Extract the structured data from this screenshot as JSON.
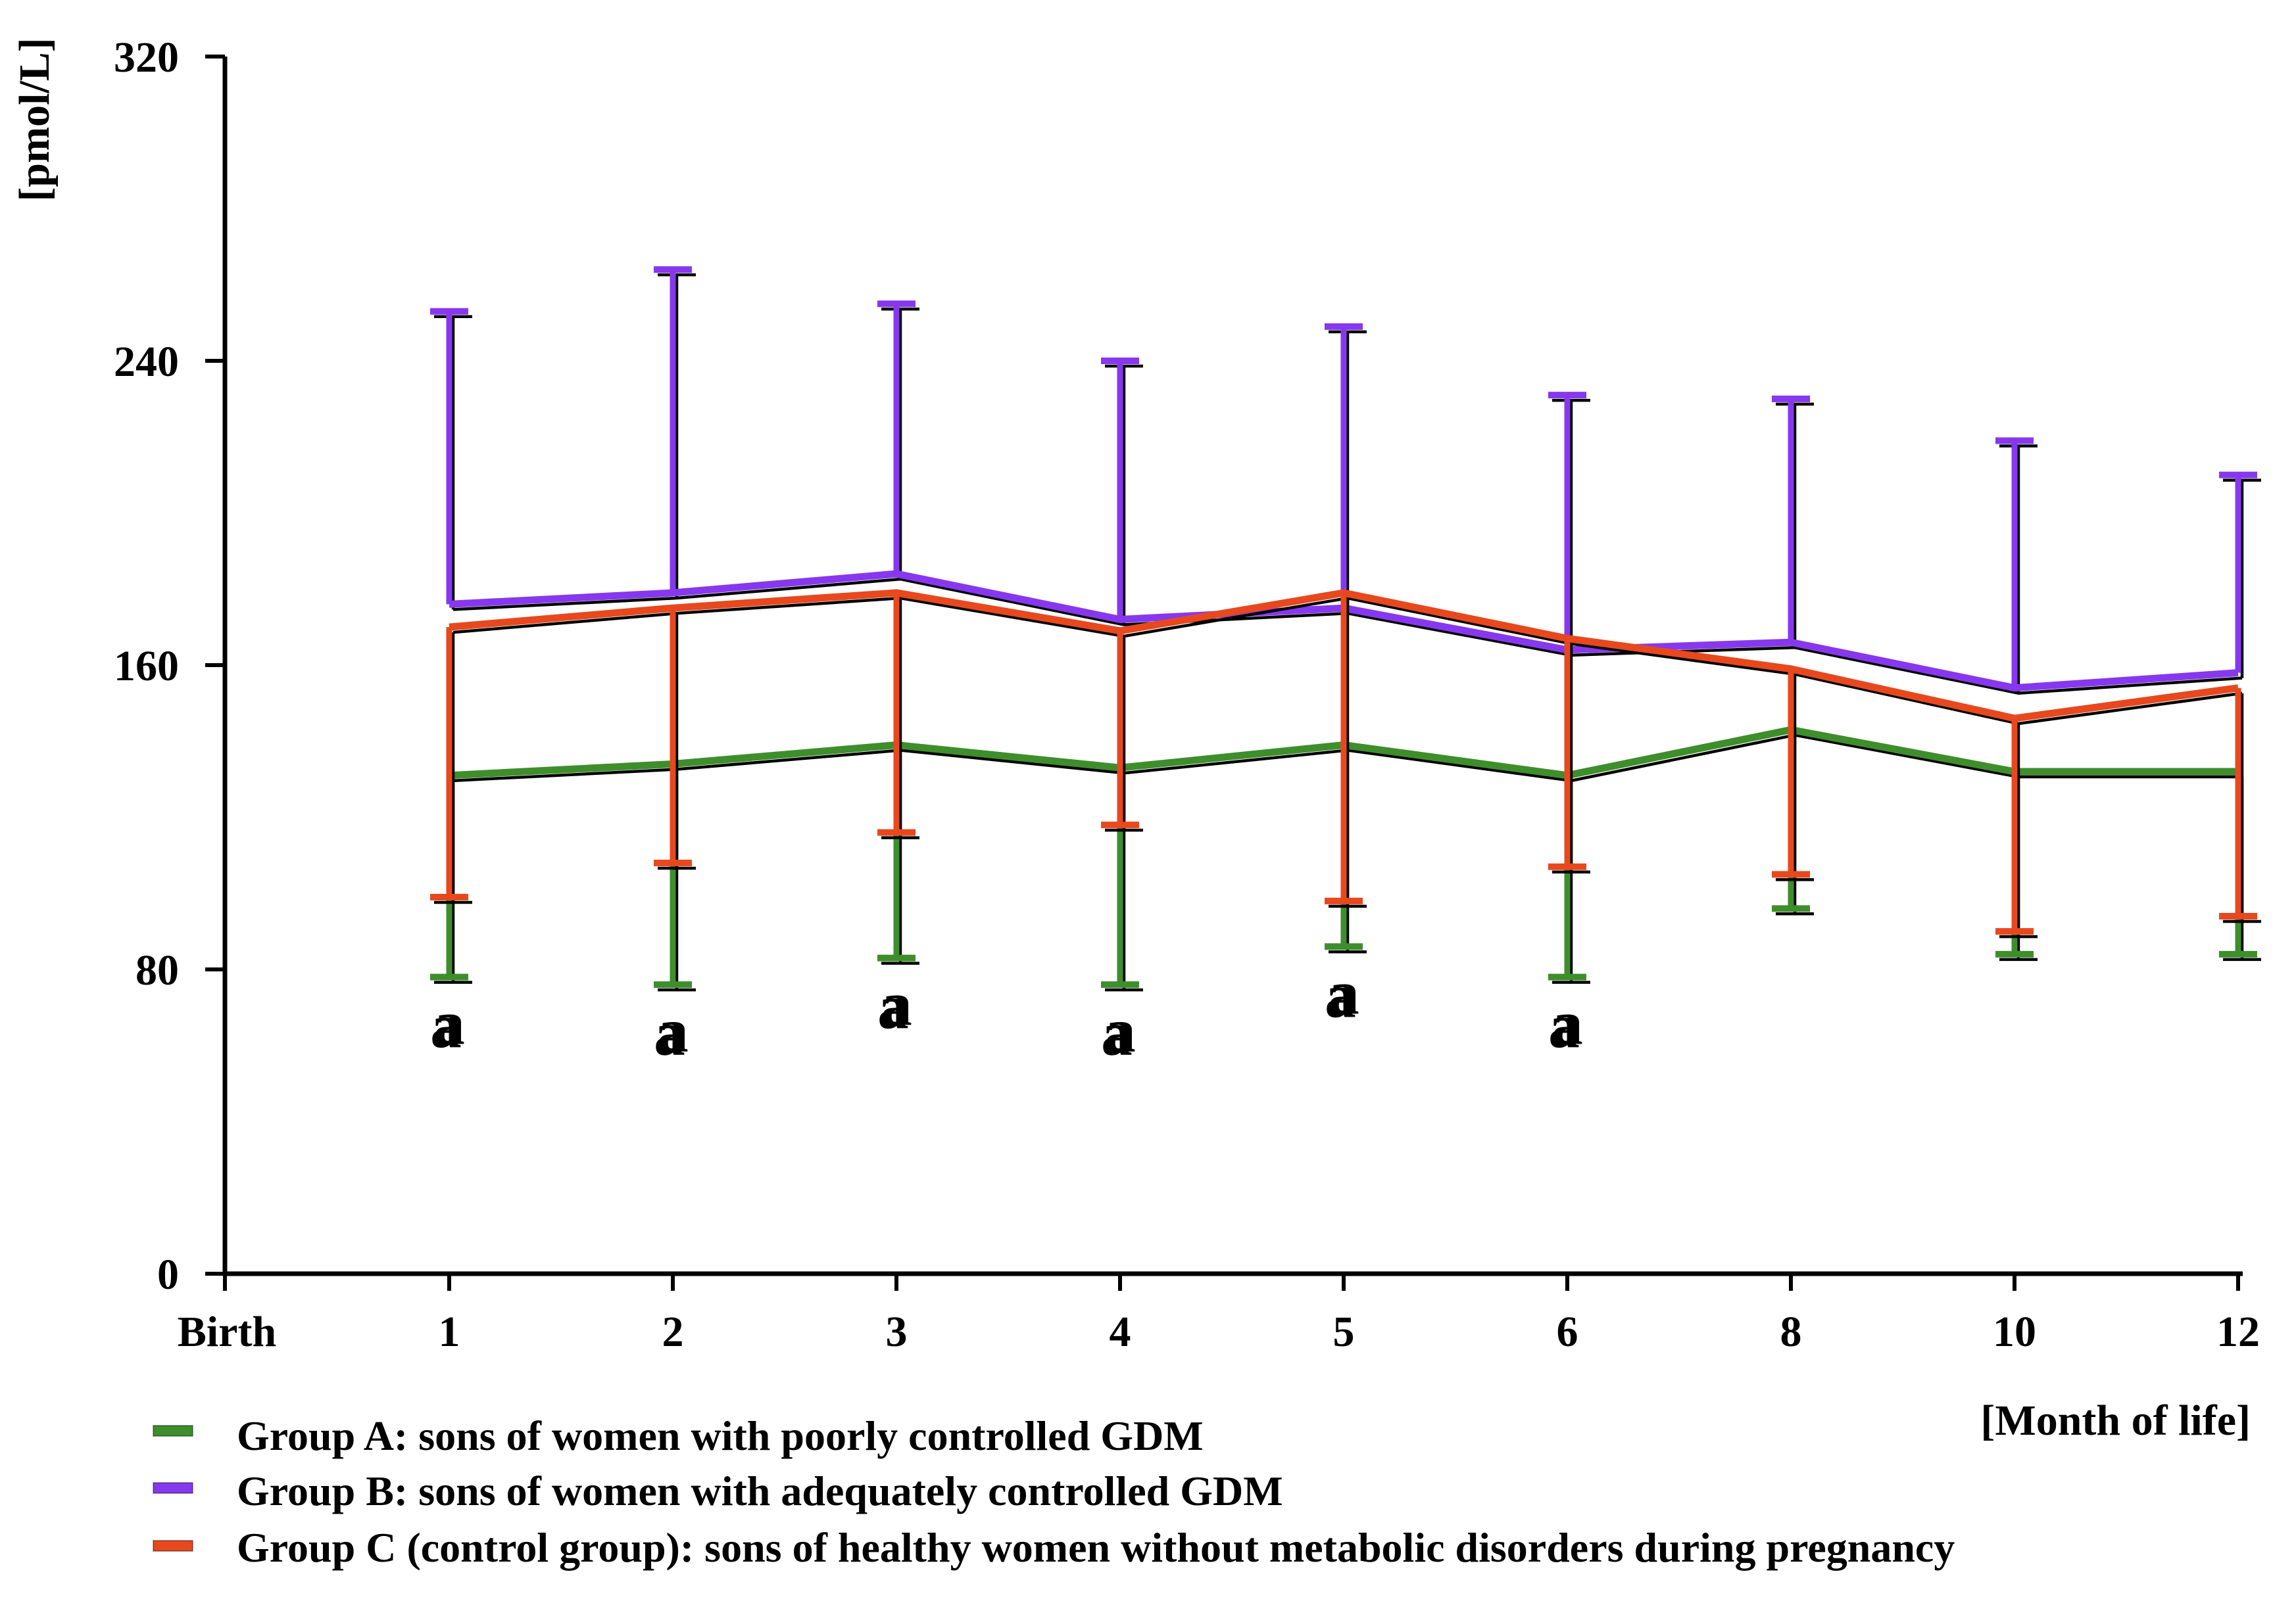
{
  "figure": {
    "background": "#ffffff",
    "y_axis_unit_label": "[pmol/L]",
    "x_axis_unit_label": "[Month of life]"
  },
  "chart_data": {
    "type": "line",
    "title": "",
    "y_axis_label": "[pmol/L]",
    "x_axis_label": "[Month of life]",
    "x_first_tick_label": "Birth",
    "categories": [
      "1",
      "2",
      "3",
      "4",
      "5",
      "6",
      "8",
      "10",
      "12"
    ],
    "y_ticks": [
      0,
      80,
      160,
      240,
      320
    ],
    "ylim": [
      0,
      320
    ],
    "grid": false,
    "legend_position": "bottom-left",
    "series": [
      {
        "id": "group-a",
        "name": "Group A",
        "label": "Group A: sons of women with poorly controlled GDM",
        "color": "#3e8e2c",
        "values": [
          131,
          134,
          139,
          133,
          139,
          131,
          143,
          132,
          132
        ],
        "error_direction": "down",
        "whisker_ends": [
          78,
          76,
          83,
          76,
          86,
          78,
          96,
          84,
          84
        ]
      },
      {
        "id": "group-b",
        "name": "Group B",
        "label": "Group B: sons of women with adequately controlled GDM",
        "color": "#8738ee",
        "values": [
          176,
          179,
          184,
          172,
          175,
          164,
          166,
          154,
          158
        ],
        "error_direction": "up",
        "whisker_ends": [
          253,
          264,
          255,
          240,
          249,
          231,
          230,
          219,
          210
        ]
      },
      {
        "id": "group-c",
        "name": "Group C",
        "label": "Group C (control group): sons of healthy women without metabolic disorders during pregnancy",
        "color": "#e8481e",
        "values": [
          170,
          175,
          179,
          169,
          179,
          167,
          159,
          146,
          154
        ],
        "error_direction": "down",
        "whisker_ends": [
          99,
          108,
          116,
          118,
          98,
          107,
          105,
          90,
          94
        ]
      }
    ],
    "annotations": {
      "text": "a",
      "color": "#3e8e2c",
      "at_categories": [
        "1",
        "2",
        "3",
        "4",
        "5",
        "6"
      ],
      "attached_series": "group-a"
    }
  }
}
